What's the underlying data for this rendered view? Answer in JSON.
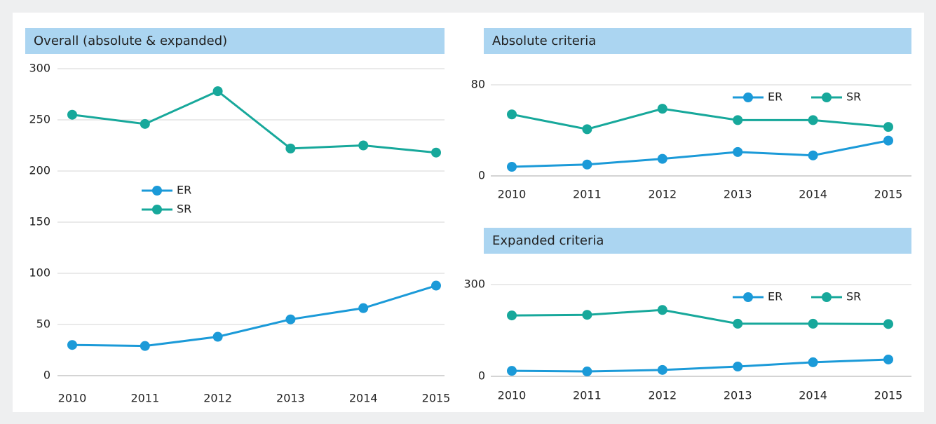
{
  "chart_data": [
    {
      "type": "line",
      "title": "Overall (absolute & expanded)",
      "categories": [
        "2010",
        "2011",
        "2012",
        "2013",
        "2014",
        "2015"
      ],
      "series": [
        {
          "name": "ER",
          "color": "#1b9ad8",
          "values": [
            30,
            29,
            38,
            55,
            66,
            88
          ]
        },
        {
          "name": "SR",
          "color": "#17a89b",
          "values": [
            255,
            246,
            278,
            222,
            225,
            218
          ]
        }
      ],
      "ylim": [
        0,
        300
      ],
      "yticks": [
        0,
        50,
        100,
        150,
        200,
        250,
        300
      ],
      "grid": true,
      "legend": "center"
    },
    {
      "type": "line",
      "title": "Absolute criteria",
      "categories": [
        "2010",
        "2011",
        "2012",
        "2013",
        "2014",
        "2015"
      ],
      "series": [
        {
          "name": "ER",
          "color": "#1b9ad8",
          "values": [
            8,
            10,
            15,
            21,
            18,
            31
          ]
        },
        {
          "name": "SR",
          "color": "#17a89b",
          "values": [
            54,
            41,
            59,
            49,
            49,
            43
          ]
        }
      ],
      "ylim": [
        0,
        80
      ],
      "yticks": [
        0,
        80
      ],
      "grid": true,
      "legend": "upper right"
    },
    {
      "type": "line",
      "title": "Expanded criteria",
      "categories": [
        "2010",
        "2011",
        "2012",
        "2013",
        "2014",
        "2015"
      ],
      "series": [
        {
          "name": "ER",
          "color": "#1b9ad8",
          "values": [
            18,
            16,
            21,
            32,
            46,
            55
          ]
        },
        {
          "name": "SR",
          "color": "#17a89b",
          "values": [
            199,
            201,
            217,
            172,
            172,
            171
          ]
        }
      ],
      "ylim": [
        0,
        300
      ],
      "yticks": [
        0,
        300
      ],
      "grid": true,
      "legend": "upper right"
    }
  ]
}
